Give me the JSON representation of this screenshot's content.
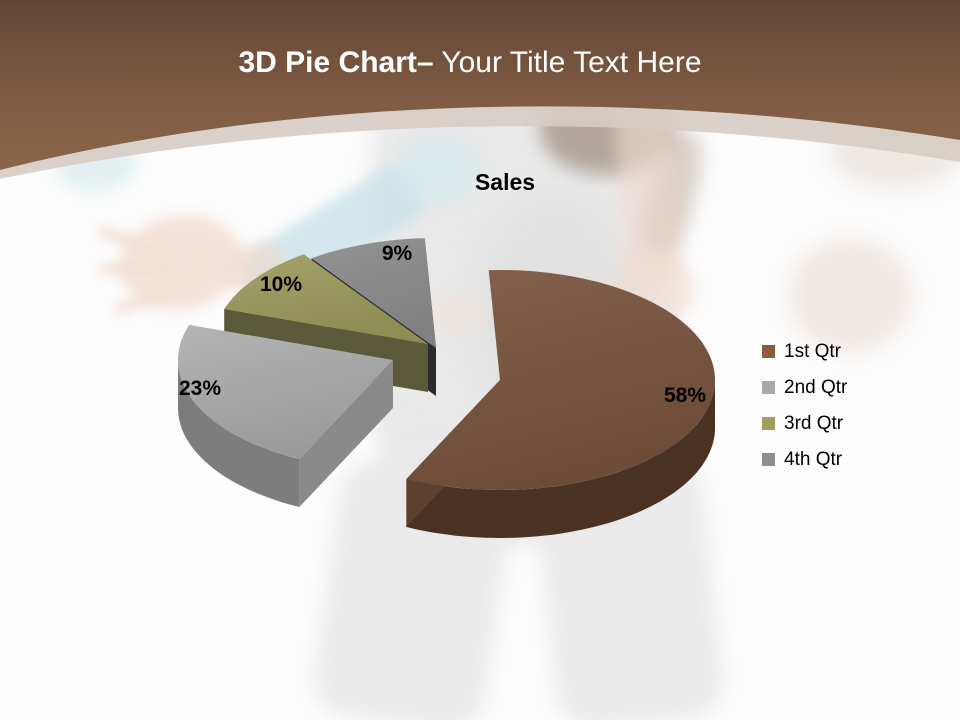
{
  "slide": {
    "title_bold": "3D Pie Chart–",
    "title_light": " Your Title Text Here",
    "header_color_top": "#624634",
    "header_color_bottom": "#8a6549",
    "band_color": "#d7cdc6"
  },
  "chart_data": {
    "type": "pie",
    "style": "3d-exploded",
    "title": "Sales",
    "legend_position": "right",
    "slices": [
      {
        "label": "1st Qtr",
        "value": 58,
        "pct_label": "58%",
        "color": "#8a5c42",
        "face_light": "#84614b",
        "face_dark": "#6d4b37",
        "side_color": "#4a3222",
        "edge_color": "#5d3f2e"
      },
      {
        "label": "2nd Qtr",
        "value": 23,
        "pct_label": "23%",
        "color": "#a8a8a8",
        "face_light": "#b4b4b4",
        "face_dark": "#9b9b9b",
        "side_color": "#7d7d7d",
        "edge_color": "#8a8a8a"
      },
      {
        "label": "3rd Qtr",
        "value": 10,
        "pct_label": "10%",
        "color": "#a0a05c",
        "face_light": "#a2a269",
        "face_dark": "#8d8d54",
        "side_color": "#43432a",
        "edge_color": "#5a5a3a"
      },
      {
        "label": "4th Qtr",
        "value": 9,
        "pct_label": "9%",
        "color": "#8f8f8f",
        "face_light": "#939393",
        "face_dark": "#818181",
        "side_color": "#333338",
        "edge_color": "#2c2c30"
      }
    ]
  }
}
